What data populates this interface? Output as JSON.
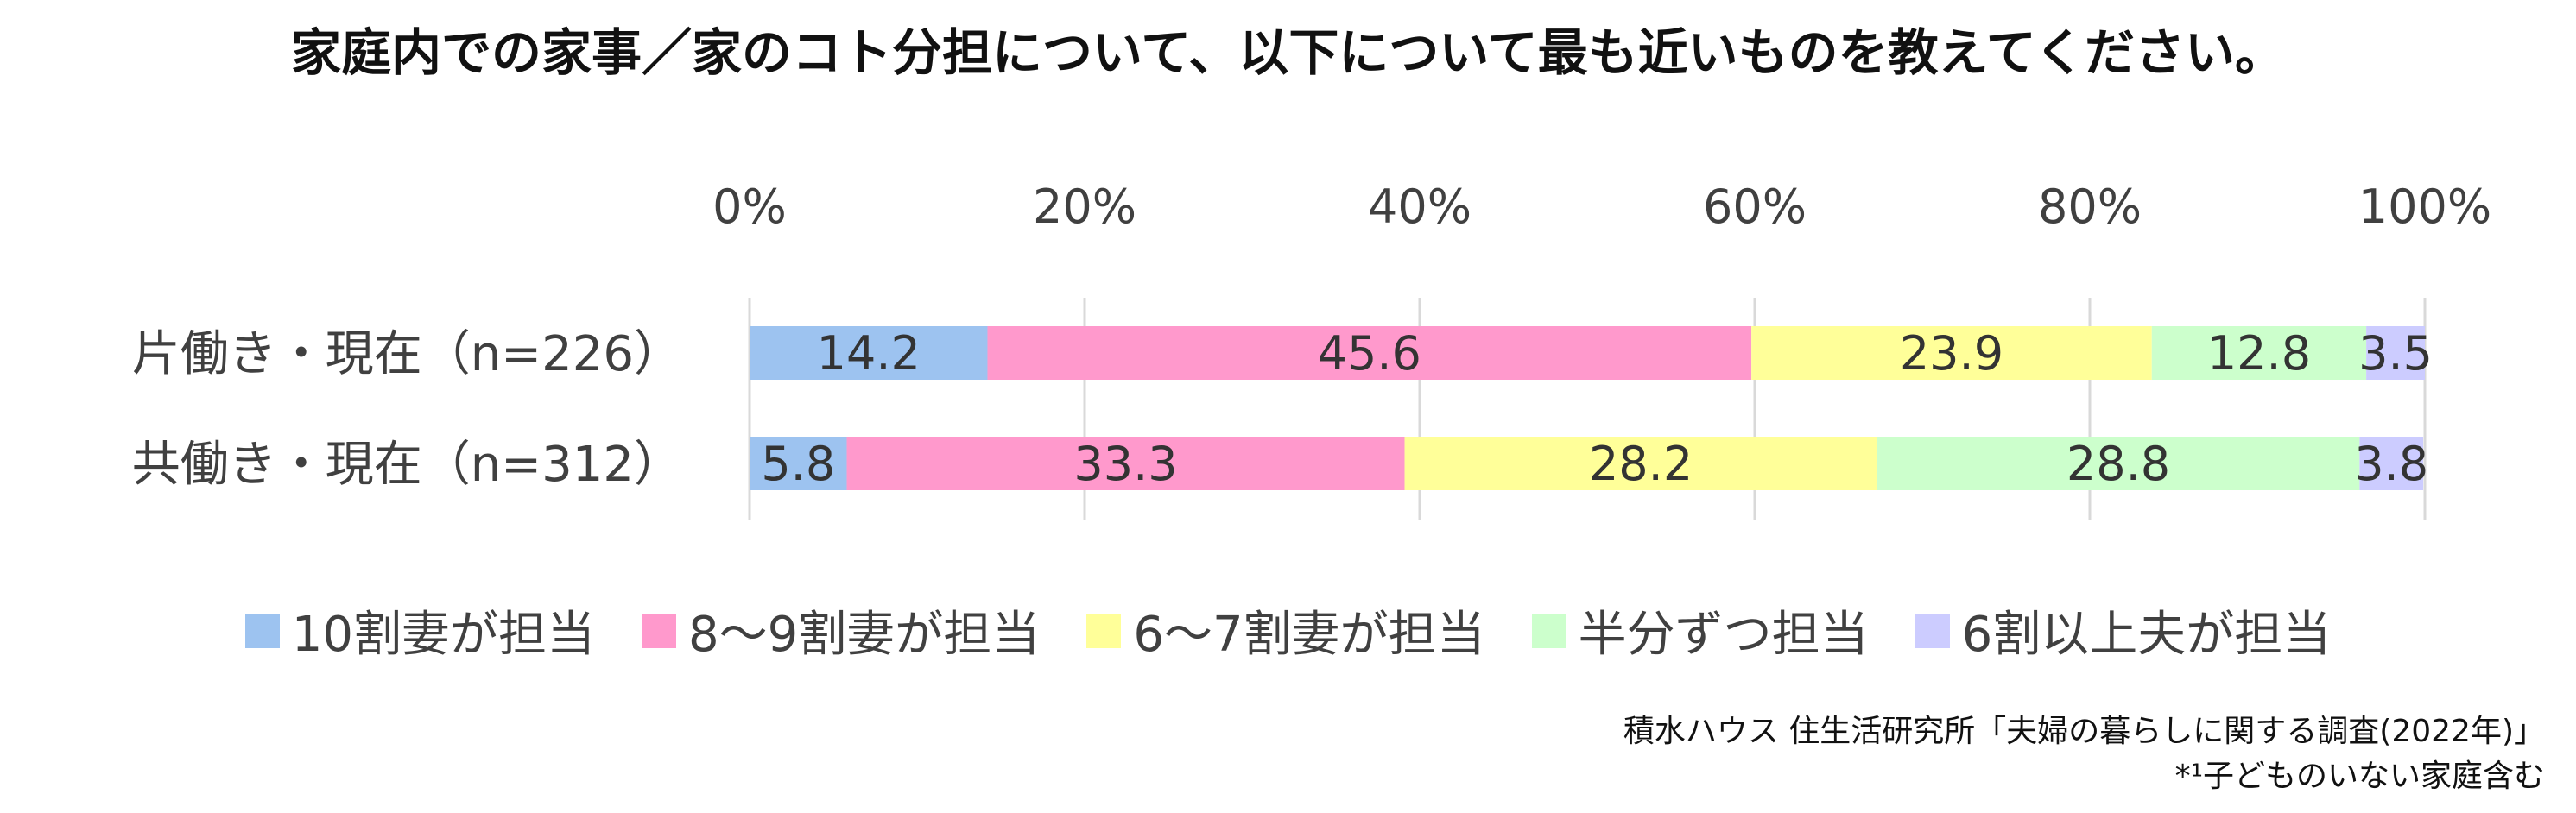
{
  "chart_data": {
    "type": "bar",
    "orientation": "horizontal",
    "stacked": true,
    "title": "家庭内での家事／家のコト分担について、以下について最も近いものを教えてください。",
    "categories": [
      "片働き・現在（n=226）",
      "共働き・現在（n=312）"
    ],
    "series": [
      {
        "name": "10割妻が担当",
        "values": [
          14.2,
          5.8
        ],
        "color": "#9dc3f0"
      },
      {
        "name": "8～9割妻が担当",
        "values": [
          45.6,
          33.3
        ],
        "color": "#ff99cc"
      },
      {
        "name": "6～7割妻が担当",
        "values": [
          23.9,
          28.2
        ],
        "color": "#ffff99"
      },
      {
        "name": "半分ずつ担当",
        "values": [
          12.8,
          28.8
        ],
        "color": "#ccffcc"
      },
      {
        "name": "6割以上夫が担当",
        "values": [
          3.5,
          3.8
        ],
        "color": "#ccccff"
      }
    ],
    "xlim": [
      0,
      100
    ],
    "xticks": [
      "0%",
      "20%",
      "40%",
      "60%",
      "80%",
      "100%"
    ],
    "grid": true,
    "legend_position": "bottom"
  },
  "footer": {
    "source": "積水ハウス 住生活研究所「夫婦の暮らしに関する調査(2022年)」",
    "note": "*¹子どものいない家庭含む"
  }
}
